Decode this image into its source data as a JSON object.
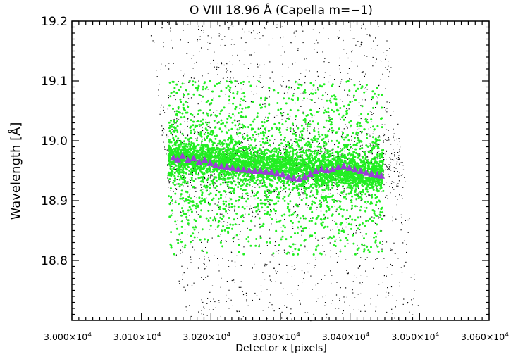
{
  "chart_data": {
    "type": "scatter",
    "title": "O VIII 18.96 Å (Capella m=−1)",
    "xlabel": "Detector x [pixels]",
    "ylabel": "Wavelength [Å]",
    "xlim": [
      30000,
      30600
    ],
    "ylim": [
      18.7,
      19.2
    ],
    "x_ticks": [
      {
        "value": 30000,
        "label": "3.000×10",
        "exp": "4"
      },
      {
        "value": 30100,
        "label": "3.010×10",
        "exp": "4"
      },
      {
        "value": 30200,
        "label": "3.020×10",
        "exp": "4"
      },
      {
        "value": 30300,
        "label": "3.030×10",
        "exp": "4"
      },
      {
        "value": 30400,
        "label": "3.040×10",
        "exp": "4"
      },
      {
        "value": 30500,
        "label": "3.050×10",
        "exp": "4"
      },
      {
        "value": 30600,
        "label": "3.060×10",
        "exp": "4"
      }
    ],
    "y_ticks": [
      {
        "value": 18.8,
        "label": "18.8"
      },
      {
        "value": 18.9,
        "label": "18.9"
      },
      {
        "value": 19.0,
        "label": "19.0"
      },
      {
        "value": 19.1,
        "label": "19.1"
      },
      {
        "value": 19.2,
        "label": "19.2"
      }
    ],
    "grid": false,
    "series": [
      {
        "color": "#000000",
        "marker": "dot",
        "parallelogram": {
          "top": {
            "y": 19.2,
            "x_left": 30110,
            "x_right": 30452
          },
          "bottom": {
            "y": 18.7,
            "x_left": 30160,
            "x_right": 30502
          },
          "dense_ridge_y": 18.96
        }
      },
      {
        "color": "#22ee22",
        "marker": "circle",
        "x_range": [
          30139,
          30448
        ],
        "y_range": [
          18.81,
          19.1
        ],
        "center_trend": {
          "x": [
            30139,
            30448
          ],
          "y": [
            18.972,
            18.944
          ]
        }
      },
      {
        "color": "#9b3fd6",
        "marker": "triangle",
        "points": [
          [
            30146,
            18.972
          ],
          [
            30152,
            18.969
          ],
          [
            30159,
            18.975
          ],
          [
            30167,
            18.968
          ],
          [
            30175,
            18.971
          ],
          [
            30183,
            18.965
          ],
          [
            30191,
            18.968
          ],
          [
            30199,
            18.963
          ],
          [
            30207,
            18.96
          ],
          [
            30215,
            18.958
          ],
          [
            30223,
            18.957
          ],
          [
            30231,
            18.955
          ],
          [
            30239,
            18.953
          ],
          [
            30247,
            18.952
          ],
          [
            30255,
            18.951
          ],
          [
            30263,
            18.95
          ],
          [
            30271,
            18.95
          ],
          [
            30279,
            18.949
          ],
          [
            30287,
            18.948
          ],
          [
            30295,
            18.946
          ],
          [
            30303,
            18.944
          ],
          [
            30311,
            18.941
          ],
          [
            30319,
            18.938
          ],
          [
            30327,
            18.936
          ],
          [
            30335,
            18.94
          ],
          [
            30343,
            18.945
          ],
          [
            30351,
            18.95
          ],
          [
            30359,
            18.953
          ],
          [
            30367,
            18.951
          ],
          [
            30375,
            18.953
          ],
          [
            30383,
            18.956
          ],
          [
            30391,
            18.958
          ],
          [
            30399,
            18.955
          ],
          [
            30407,
            18.952
          ],
          [
            30415,
            18.95
          ],
          [
            30423,
            18.947
          ],
          [
            30431,
            18.945
          ],
          [
            30439,
            18.943
          ],
          [
            30445,
            18.942
          ]
        ]
      }
    ]
  }
}
